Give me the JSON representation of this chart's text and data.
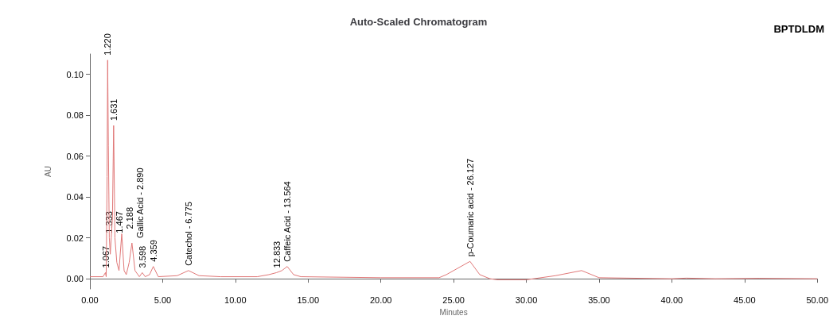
{
  "chart_data": {
    "type": "line",
    "title": "Auto-Scaled Chromatogram",
    "xlabel": "Minutes",
    "ylabel": "AU",
    "xlim": [
      0,
      50
    ],
    "ylim": [
      -0.005,
      0.11
    ],
    "xticks": [
      {
        "value": 0,
        "label": "0.00"
      },
      {
        "value": 5,
        "label": "5.00"
      },
      {
        "value": 10,
        "label": "10.00"
      },
      {
        "value": 15,
        "label": "15.00"
      },
      {
        "value": 20,
        "label": "20.00"
      },
      {
        "value": 25,
        "label": "25.00"
      },
      {
        "value": 30,
        "label": "30.00"
      },
      {
        "value": 35,
        "label": "35.00"
      },
      {
        "value": 40,
        "label": "40.00"
      },
      {
        "value": 45,
        "label": "45.00"
      },
      {
        "value": 50,
        "label": "50.00"
      }
    ],
    "yticks": [
      {
        "value": 0,
        "label": "0.00"
      },
      {
        "value": 0.02,
        "label": "0.02"
      },
      {
        "value": 0.04,
        "label": "0.04"
      },
      {
        "value": 0.06,
        "label": "0.06"
      },
      {
        "value": 0.08,
        "label": "0.08"
      },
      {
        "value": 0.1,
        "label": "0.10"
      }
    ],
    "grid": false,
    "marker": "none",
    "line_style": "solid",
    "series": [
      {
        "color": "#e07878",
        "x": [
          0,
          0.9,
          1.067,
          1.12,
          1.18,
          1.22,
          1.27,
          1.333,
          1.4,
          1.467,
          1.55,
          1.631,
          1.72,
          1.85,
          2.0,
          2.188,
          2.35,
          2.5,
          2.7,
          2.89,
          3.1,
          3.4,
          3.598,
          3.8,
          4.1,
          4.359,
          4.7,
          6.0,
          6.775,
          7.5,
          9.0,
          11.5,
          12.3,
          12.833,
          13.2,
          13.564,
          14.0,
          14.5,
          20,
          24,
          24.5,
          26.127,
          26.8,
          27.5,
          28,
          30,
          32,
          33.8,
          35,
          40,
          41,
          43,
          46,
          50
        ],
        "values": [
          0.001,
          0.001,
          0.003,
          0.001,
          0.05,
          0.107,
          0.065,
          0.02,
          0.012,
          0.02,
          0.03,
          0.075,
          0.02,
          0.008,
          0.004,
          0.022,
          0.004,
          0.002,
          0.008,
          0.0175,
          0.004,
          0.001,
          0.003,
          0.001,
          0.002,
          0.006,
          0.001,
          0.0015,
          0.004,
          0.0015,
          0.001,
          0.001,
          0.002,
          0.003,
          0.004,
          0.006,
          0.002,
          0.001,
          0.0005,
          0.0005,
          0.002,
          0.0085,
          0.002,
          0,
          -0.0005,
          -0.0005,
          0.0015,
          0.004,
          0.0005,
          0,
          0.0003,
          0,
          0.0002,
          0
        ]
      }
    ],
    "annotations": [
      "BPTDLDM",
      {
        "text": "1.067",
        "x": 1.067,
        "y": 0.003
      },
      {
        "text": "1.220",
        "x": 1.22,
        "y": 0.107
      },
      {
        "text": "1.333",
        "x": 1.333,
        "y": 0.02
      },
      {
        "text": "1.467",
        "x": 1.467,
        "y": 0.02
      },
      {
        "text": "1.631",
        "x": 1.631,
        "y": 0.075
      },
      {
        "text": "2.188",
        "x": 2.188,
        "y": 0.022
      },
      {
        "text": "Gallic Acid - 2.890",
        "x": 2.89,
        "y": 0.0175
      },
      {
        "text": "3.598",
        "x": 3.598,
        "y": 0.003
      },
      {
        "text": "4.359",
        "x": 4.359,
        "y": 0.006
      },
      {
        "text": "Catechol - 6.775",
        "x": 6.775,
        "y": 0.004
      },
      {
        "text": "12.833",
        "x": 12.833,
        "y": 0.003
      },
      {
        "text": "Caffeic Acid - 13.564",
        "x": 13.564,
        "y": 0.006
      },
      {
        "text": "p-Coumaric acid - 26.127",
        "x": 26.127,
        "y": 0.0085
      }
    ]
  }
}
